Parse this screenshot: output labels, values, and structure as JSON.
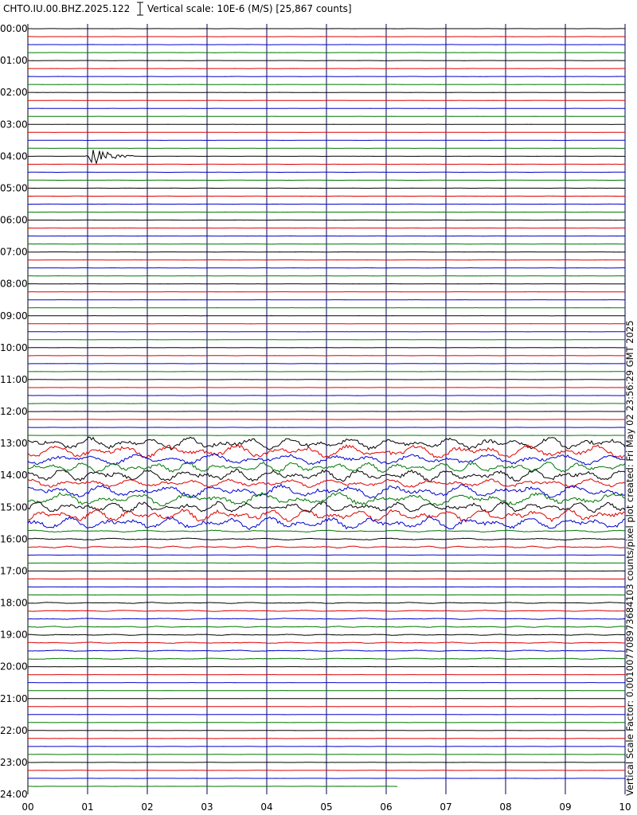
{
  "header": {
    "station": "CHTO.IU.00.BHZ.2025.122",
    "scale": "Vertical scale: 10E-6 (M/S) [25,867 counts]"
  },
  "hour_labels": [
    "00:00",
    "01:00",
    "02:00",
    "03:00",
    "04:00",
    "05:00",
    "06:00",
    "07:00",
    "08:00",
    "09:00",
    "10:00",
    "11:00",
    "12:00",
    "13:00",
    "14:00",
    "15:00",
    "16:00",
    "17:00",
    "18:00",
    "19:00",
    "20:00",
    "21:00",
    "22:00",
    "23:00",
    "24:00"
  ],
  "minute_labels": [
    "00",
    "01",
    "02",
    "03",
    "04",
    "05",
    "06",
    "07",
    "08",
    "09",
    "10"
  ],
  "side_note": "Vertical Scale Factor: 0.001007708973684103 counts/pixel plot created: Fri May 02 23:56:29 GMT 2025"
}
